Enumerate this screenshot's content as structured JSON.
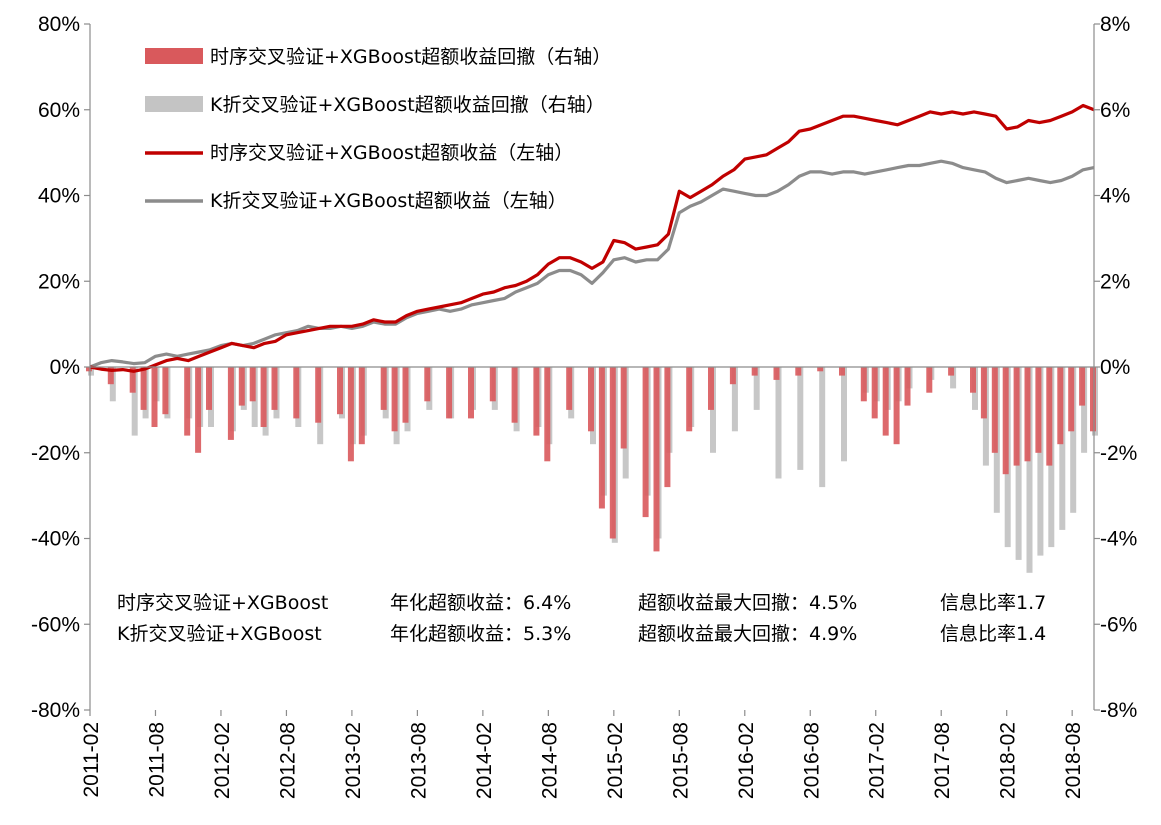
{
  "chart_data": {
    "type": "line",
    "title": "",
    "xlabel": "",
    "ylabel": "",
    "ylim_left": [
      -80,
      80
    ],
    "ylim_right": [
      -8,
      8
    ],
    "y_left_ticks": [
      "80%",
      "60%",
      "40%",
      "20%",
      "0%",
      "-20%",
      "-40%",
      "-60%",
      "-80%"
    ],
    "y_right_ticks": [
      "8%",
      "6%",
      "4%",
      "2%",
      "0%",
      "-2%",
      "-4%",
      "-6%",
      "-8%"
    ],
    "x_ticks": [
      "2011-02",
      "2011-08",
      "2012-02",
      "2012-08",
      "2013-02",
      "2013-08",
      "2014-02",
      "2014-08",
      "2015-02",
      "2015-08",
      "2016-02",
      "2016-08",
      "2017-02",
      "2017-08",
      "2018-02",
      "2018-08"
    ],
    "x_range": [
      "2011-02",
      "2018-10"
    ],
    "grid": false,
    "legend_position": "top-left",
    "colors": {
      "red": "#c00000",
      "red_fill": "#d9595c",
      "gray": "#8c8c8c",
      "gray_fill": "#c4c4c4"
    },
    "series": [
      {
        "name": "时序交叉验证+XGBoost超额收益回撤（右轴）",
        "type": "bar",
        "axis": "right",
        "color": "#d9595c",
        "x": [
          "2011-02",
          "2011-04",
          "2011-06",
          "2011-07",
          "2011-08",
          "2011-09",
          "2011-11",
          "2011-12",
          "2012-01",
          "2012-03",
          "2012-04",
          "2012-05",
          "2012-06",
          "2012-07",
          "2012-09",
          "2012-11",
          "2013-01",
          "2013-02",
          "2013-03",
          "2013-05",
          "2013-06",
          "2013-07",
          "2013-09",
          "2013-11",
          "2014-01",
          "2014-03",
          "2014-05",
          "2014-07",
          "2014-08",
          "2014-10",
          "2014-12",
          "2015-01",
          "2015-02",
          "2015-03",
          "2015-05",
          "2015-06",
          "2015-07",
          "2015-09",
          "2015-11",
          "2016-01",
          "2016-03",
          "2016-05",
          "2016-07",
          "2016-09",
          "2016-11",
          "2017-01",
          "2017-02",
          "2017-03",
          "2017-04",
          "2017-05",
          "2017-07",
          "2017-09",
          "2017-11",
          "2017-12",
          "2018-01",
          "2018-02",
          "2018-03",
          "2018-04",
          "2018-05",
          "2018-06",
          "2018-07",
          "2018-08",
          "2018-09",
          "2018-10"
        ],
        "values": [
          -0.1,
          -0.4,
          -0.6,
          -1.0,
          -1.4,
          -1.1,
          -1.6,
          -2.0,
          -1.0,
          -1.7,
          -0.9,
          -0.8,
          -1.4,
          -1.0,
          -1.2,
          -1.3,
          -1.1,
          -2.2,
          -1.8,
          -1.0,
          -1.5,
          -1.3,
          -0.8,
          -1.2,
          -1.2,
          -0.8,
          -1.3,
          -1.6,
          -2.2,
          -1.0,
          -1.5,
          -3.3,
          -4.0,
          -1.9,
          -3.5,
          -4.3,
          -2.8,
          -1.5,
          -1.0,
          -0.4,
          -0.2,
          -0.3,
          -0.2,
          -0.1,
          -0.2,
          -0.8,
          -1.2,
          -1.6,
          -1.8,
          -0.9,
          -0.6,
          -0.2,
          -0.6,
          -1.2,
          -2.0,
          -2.5,
          -2.3,
          -2.2,
          -2.0,
          -2.3,
          -1.8,
          -1.5,
          -0.9,
          -1.5
        ]
      },
      {
        "name": "K折交叉验证+XGBoost超额收益回撤（右轴）",
        "type": "bar",
        "axis": "right",
        "color": "#c4c4c4",
        "x": [
          "2011-02",
          "2011-04",
          "2011-06",
          "2011-07",
          "2011-08",
          "2011-09",
          "2011-11",
          "2011-12",
          "2012-01",
          "2012-03",
          "2012-04",
          "2012-05",
          "2012-06",
          "2012-07",
          "2012-09",
          "2012-11",
          "2013-01",
          "2013-02",
          "2013-03",
          "2013-05",
          "2013-06",
          "2013-07",
          "2013-09",
          "2013-11",
          "2014-01",
          "2014-03",
          "2014-05",
          "2014-07",
          "2014-08",
          "2014-10",
          "2014-12",
          "2015-01",
          "2015-02",
          "2015-03",
          "2015-05",
          "2015-06",
          "2015-07",
          "2015-09",
          "2015-11",
          "2016-01",
          "2016-03",
          "2016-05",
          "2016-07",
          "2016-09",
          "2016-11",
          "2017-01",
          "2017-02",
          "2017-03",
          "2017-04",
          "2017-05",
          "2017-07",
          "2017-09",
          "2017-11",
          "2017-12",
          "2018-01",
          "2018-02",
          "2018-03",
          "2018-04",
          "2018-05",
          "2018-06",
          "2018-07",
          "2018-08",
          "2018-09",
          "2018-10"
        ],
        "values": [
          -0.2,
          -0.8,
          -1.6,
          -1.2,
          -0.8,
          -1.2,
          -1.2,
          -1.4,
          -1.4,
          -1.5,
          -1.0,
          -1.4,
          -1.6,
          -1.2,
          -1.4,
          -1.8,
          -1.2,
          -1.8,
          -1.6,
          -1.2,
          -1.8,
          -1.5,
          -1.0,
          -1.2,
          -1.0,
          -1.0,
          -1.5,
          -1.4,
          -1.8,
          -1.2,
          -1.8,
          -3.0,
          -4.1,
          -2.6,
          -3.0,
          -4.0,
          -2.0,
          -1.4,
          -2.0,
          -1.5,
          -1.0,
          -2.6,
          -2.4,
          -2.8,
          -2.2,
          -0.6,
          -0.8,
          -1.0,
          -0.8,
          -0.5,
          -0.3,
          -0.5,
          -1.0,
          -2.3,
          -3.4,
          -4.2,
          -4.5,
          -4.8,
          -4.4,
          -4.2,
          -3.8,
          -3.4,
          -2.0,
          -1.6
        ]
      },
      {
        "name": "时序交叉验证+XGBoost超额收益（左轴）",
        "type": "line",
        "axis": "left",
        "color": "#c00000",
        "x": [
          "2011-02",
          "2011-03",
          "2011-04",
          "2011-05",
          "2011-06",
          "2011-07",
          "2011-08",
          "2011-09",
          "2011-10",
          "2011-11",
          "2011-12",
          "2012-01",
          "2012-02",
          "2012-03",
          "2012-04",
          "2012-05",
          "2012-06",
          "2012-07",
          "2012-08",
          "2012-09",
          "2012-10",
          "2012-11",
          "2012-12",
          "2013-01",
          "2013-02",
          "2013-03",
          "2013-04",
          "2013-05",
          "2013-06",
          "2013-07",
          "2013-08",
          "2013-09",
          "2013-10",
          "2013-11",
          "2013-12",
          "2014-01",
          "2014-02",
          "2014-03",
          "2014-04",
          "2014-05",
          "2014-06",
          "2014-07",
          "2014-08",
          "2014-09",
          "2014-10",
          "2014-11",
          "2014-12",
          "2015-01",
          "2015-02",
          "2015-03",
          "2015-04",
          "2015-05",
          "2015-06",
          "2015-07",
          "2015-08",
          "2015-09",
          "2015-10",
          "2015-11",
          "2015-12",
          "2016-01",
          "2016-02",
          "2016-03",
          "2016-04",
          "2016-05",
          "2016-06",
          "2016-07",
          "2016-08",
          "2016-09",
          "2016-10",
          "2016-11",
          "2016-12",
          "2017-01",
          "2017-02",
          "2017-03",
          "2017-04",
          "2017-05",
          "2017-06",
          "2017-07",
          "2017-08",
          "2017-09",
          "2017-10",
          "2017-11",
          "2017-12",
          "2018-01",
          "2018-02",
          "2018-03",
          "2018-04",
          "2018-05",
          "2018-06",
          "2018-07",
          "2018-08",
          "2018-09",
          "2018-10"
        ],
        "values": [
          0,
          -0.5,
          -0.8,
          -0.6,
          -1.0,
          -0.5,
          0.5,
          1.5,
          2.0,
          1.5,
          2.5,
          3.5,
          4.5,
          5.5,
          5.0,
          4.5,
          5.5,
          6.0,
          7.5,
          8.0,
          8.5,
          9.0,
          9.5,
          9.5,
          9.5,
          10.0,
          11.0,
          10.5,
          10.5,
          12.0,
          13.0,
          13.5,
          14.0,
          14.5,
          15.0,
          16.0,
          17.0,
          17.5,
          18.5,
          19.0,
          20.0,
          21.5,
          24.0,
          25.5,
          25.5,
          24.5,
          23.0,
          24.5,
          29.5,
          29.0,
          27.5,
          28.0,
          28.5,
          31.0,
          41.0,
          39.5,
          41.0,
          42.5,
          44.5,
          46.0,
          48.5,
          49.0,
          49.5,
          51.0,
          52.5,
          55.0,
          55.5,
          56.5,
          57.5,
          58.5,
          58.5,
          58.0,
          57.5,
          57.0,
          56.5,
          57.5,
          58.5,
          59.5,
          59.0,
          59.5,
          59.0,
          59.5,
          59.0,
          58.5,
          55.5,
          56.0,
          57.5,
          57.0,
          57.5,
          58.5,
          59.5,
          61.0,
          60.0
        ]
      },
      {
        "name": "K折交叉验证+XGBoost超额收益（左轴）",
        "type": "line",
        "axis": "left",
        "color": "#8c8c8c",
        "x": [
          "2011-02",
          "2011-03",
          "2011-04",
          "2011-05",
          "2011-06",
          "2011-07",
          "2011-08",
          "2011-09",
          "2011-10",
          "2011-11",
          "2011-12",
          "2012-01",
          "2012-02",
          "2012-03",
          "2012-04",
          "2012-05",
          "2012-06",
          "2012-07",
          "2012-08",
          "2012-09",
          "2012-10",
          "2012-11",
          "2012-12",
          "2013-01",
          "2013-02",
          "2013-03",
          "2013-04",
          "2013-05",
          "2013-06",
          "2013-07",
          "2013-08",
          "2013-09",
          "2013-10",
          "2013-11",
          "2013-12",
          "2014-01",
          "2014-02",
          "2014-03",
          "2014-04",
          "2014-05",
          "2014-06",
          "2014-07",
          "2014-08",
          "2014-09",
          "2014-10",
          "2014-11",
          "2014-12",
          "2015-01",
          "2015-02",
          "2015-03",
          "2015-04",
          "2015-05",
          "2015-06",
          "2015-07",
          "2015-08",
          "2015-09",
          "2015-10",
          "2015-11",
          "2015-12",
          "2016-01",
          "2016-02",
          "2016-03",
          "2016-04",
          "2016-05",
          "2016-06",
          "2016-07",
          "2016-08",
          "2016-09",
          "2016-10",
          "2016-11",
          "2016-12",
          "2017-01",
          "2017-02",
          "2017-03",
          "2017-04",
          "2017-05",
          "2017-06",
          "2017-07",
          "2017-08",
          "2017-09",
          "2017-10",
          "2017-11",
          "2017-12",
          "2018-01",
          "2018-02",
          "2018-03",
          "2018-04",
          "2018-05",
          "2018-06",
          "2018-07",
          "2018-08",
          "2018-09",
          "2018-10"
        ],
        "values": [
          0,
          1.0,
          1.5,
          1.2,
          0.8,
          1.0,
          2.5,
          3.0,
          2.5,
          3.0,
          3.5,
          4.0,
          5.0,
          5.5,
          5.0,
          5.5,
          6.5,
          7.5,
          8.0,
          8.5,
          9.5,
          9.0,
          9.0,
          9.5,
          9.0,
          9.5,
          10.5,
          10.0,
          10.0,
          11.5,
          12.5,
          13.0,
          13.5,
          13.0,
          13.5,
          14.5,
          15.0,
          15.5,
          16.0,
          17.5,
          18.5,
          19.5,
          21.5,
          22.5,
          22.5,
          21.5,
          19.5,
          22.0,
          25.0,
          25.5,
          24.5,
          25.0,
          25.0,
          27.5,
          36.0,
          37.5,
          38.5,
          40.0,
          41.5,
          41.0,
          40.5,
          40.0,
          40.0,
          41.0,
          42.5,
          44.5,
          45.5,
          45.5,
          45.0,
          45.5,
          45.5,
          45.0,
          45.5,
          46.0,
          46.5,
          47.0,
          47.0,
          47.5,
          48.0,
          47.5,
          46.5,
          46.0,
          45.5,
          44.0,
          43.0,
          43.5,
          44.0,
          43.5,
          43.0,
          43.5,
          44.5,
          46.0,
          46.5
        ]
      }
    ],
    "annotations": [
      {
        "label": "时序交叉验证+XGBoost",
        "annual_label": "年化超额收益：",
        "annual_value": "6.4%",
        "dd_label": "超额收益最大回撤：",
        "dd_value": "4.5%",
        "ir_label": "信息比率",
        "ir_value": "1.7"
      },
      {
        "label": "K折交叉验证+XGBoost",
        "annual_label": "年化超额收益：",
        "annual_value": "5.3%",
        "dd_label": "超额收益最大回撤：",
        "dd_value": "4.9%",
        "ir_label": "信息比率",
        "ir_value": "1.4"
      }
    ]
  }
}
